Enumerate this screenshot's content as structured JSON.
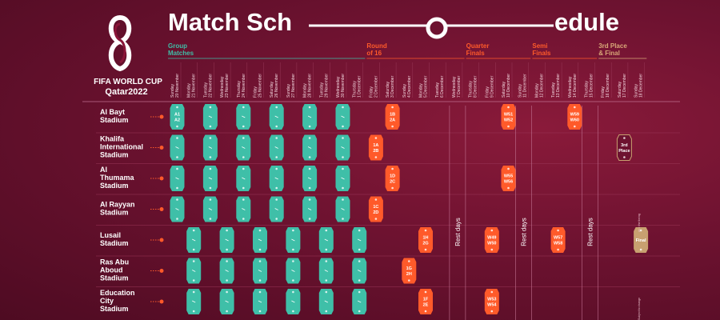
{
  "title_part1": "Match Sch",
  "title_part2": "edule",
  "logo": {
    "line1": "FIFA WORLD CUP",
    "line2": "Qatar2022"
  },
  "colors": {
    "group": "#3fbfa8",
    "knockout": "#ff5a2a",
    "final": "#c8a070",
    "bg": "#6d1230"
  },
  "stages": [
    {
      "line1": "Group",
      "line2": "Matches",
      "color": "green"
    },
    {
      "line1": "Round",
      "line2": "of 16",
      "color": "orange"
    },
    {
      "line1": "Quarter",
      "line2": "Finals",
      "color": "orange"
    },
    {
      "line1": "Semi",
      "line2": "Finals",
      "color": "orange"
    },
    {
      "line1": "3rd Place",
      "line2": "& Final",
      "color": "gold"
    }
  ],
  "dates": [
    {
      "day": "Sunday",
      "date": "20 November"
    },
    {
      "day": "Monday",
      "date": "21 November"
    },
    {
      "day": "Tuesday",
      "date": "22 November"
    },
    {
      "day": "Wednesday",
      "date": "23 November"
    },
    {
      "day": "Thursday",
      "date": "24 November"
    },
    {
      "day": "Friday",
      "date": "25 November"
    },
    {
      "day": "Saturday",
      "date": "26 November"
    },
    {
      "day": "Sunday",
      "date": "27 November"
    },
    {
      "day": "Monday",
      "date": "28 November"
    },
    {
      "day": "Tuesday",
      "date": "29 November"
    },
    {
      "day": "Wednesday",
      "date": "30 November"
    },
    {
      "day": "Thursday",
      "date": "1 December"
    },
    {
      "day": "Friday",
      "date": "2 December"
    },
    {
      "day": "Saturday",
      "date": "3 December"
    },
    {
      "day": "Sunday",
      "date": "4 December"
    },
    {
      "day": "Monday",
      "date": "5 December"
    },
    {
      "day": "Tuesday",
      "date": "6 December"
    },
    {
      "day": "Wednesday",
      "date": "7 December"
    },
    {
      "day": "Thursday",
      "date": "8 December"
    },
    {
      "day": "Friday",
      "date": "9 December"
    },
    {
      "day": "Saturday",
      "date": "10 December"
    },
    {
      "day": "Sunday",
      "date": "11 December"
    },
    {
      "day": "Monday",
      "date": "12 December"
    },
    {
      "day": "Tuesday",
      "date": "13 December"
    },
    {
      "day": "Wednesday",
      "date": "14 December"
    },
    {
      "day": "Thursday",
      "date": "15 December"
    },
    {
      "day": "Friday",
      "date": "16 December"
    },
    {
      "day": "Saturday",
      "date": "17 December"
    },
    {
      "day": "Sunday",
      "date": "18 December"
    }
  ],
  "stadiums": [
    [
      "Al Bayt",
      "Stadium"
    ],
    [
      "Khalifa",
      "International",
      "Stadium"
    ],
    [
      "Al",
      "Thumama",
      "Stadium"
    ],
    [
      "Al Rayyan",
      "Stadium"
    ],
    [
      "Lusail",
      "Stadium"
    ],
    [
      "Ras Abu",
      "Aboud",
      "Stadium"
    ],
    [
      "Education",
      "City",
      "Stadium"
    ]
  ],
  "matches": [
    {
      "row": 0,
      "col": 0,
      "label": [
        "A1",
        "A2"
      ],
      "color": "green"
    },
    {
      "row": 0,
      "col": 2,
      "label": [],
      "color": "green"
    },
    {
      "row": 0,
      "col": 4,
      "label": [],
      "color": "green"
    },
    {
      "row": 0,
      "col": 6,
      "label": [],
      "color": "green"
    },
    {
      "row": 0,
      "col": 8,
      "label": [],
      "color": "green"
    },
    {
      "row": 0,
      "col": 10,
      "label": [],
      "color": "green"
    },
    {
      "row": 0,
      "col": 13,
      "label": [
        "1B",
        "2A"
      ],
      "color": "orange"
    },
    {
      "row": 0,
      "col": 20,
      "label": [
        "W51",
        "W52"
      ],
      "color": "orange"
    },
    {
      "row": 0,
      "col": 24,
      "label": [
        "W59",
        "W60"
      ],
      "color": "orange"
    },
    {
      "row": 1,
      "col": 0,
      "label": [],
      "color": "green"
    },
    {
      "row": 1,
      "col": 2,
      "label": [],
      "color": "green"
    },
    {
      "row": 1,
      "col": 4,
      "label": [],
      "color": "green"
    },
    {
      "row": 1,
      "col": 6,
      "label": [],
      "color": "green"
    },
    {
      "row": 1,
      "col": 8,
      "label": [],
      "color": "green"
    },
    {
      "row": 1,
      "col": 10,
      "label": [],
      "color": "green"
    },
    {
      "row": 1,
      "col": 12,
      "label": [
        "1A",
        "2B"
      ],
      "color": "orange"
    },
    {
      "row": 1,
      "col": 27,
      "label": [
        "3rd",
        "Place"
      ],
      "color": "gold-outline"
    },
    {
      "row": 2,
      "col": 0,
      "label": [],
      "color": "green"
    },
    {
      "row": 2,
      "col": 2,
      "label": [],
      "color": "green"
    },
    {
      "row": 2,
      "col": 4,
      "label": [],
      "color": "green"
    },
    {
      "row": 2,
      "col": 6,
      "label": [],
      "color": "green"
    },
    {
      "row": 2,
      "col": 8,
      "label": [],
      "color": "green"
    },
    {
      "row": 2,
      "col": 10,
      "label": [],
      "color": "green"
    },
    {
      "row": 2,
      "col": 13,
      "label": [
        "1D",
        "2C"
      ],
      "color": "orange"
    },
    {
      "row": 2,
      "col": 20,
      "label": [
        "W55",
        "W56"
      ],
      "color": "orange"
    },
    {
      "row": 3,
      "col": 0,
      "label": [],
      "color": "green"
    },
    {
      "row": 3,
      "col": 2,
      "label": [],
      "color": "green"
    },
    {
      "row": 3,
      "col": 4,
      "label": [],
      "color": "green"
    },
    {
      "row": 3,
      "col": 6,
      "label": [],
      "color": "green"
    },
    {
      "row": 3,
      "col": 8,
      "label": [],
      "color": "green"
    },
    {
      "row": 3,
      "col": 10,
      "label": [],
      "color": "green"
    },
    {
      "row": 3,
      "col": 12,
      "label": [
        "1C",
        "2D"
      ],
      "color": "orange"
    },
    {
      "row": 4,
      "col": 1,
      "label": [],
      "color": "green"
    },
    {
      "row": 4,
      "col": 3,
      "label": [],
      "color": "green"
    },
    {
      "row": 4,
      "col": 5,
      "label": [],
      "color": "green"
    },
    {
      "row": 4,
      "col": 7,
      "label": [],
      "color": "green"
    },
    {
      "row": 4,
      "col": 9,
      "label": [],
      "color": "green"
    },
    {
      "row": 4,
      "col": 11,
      "label": [],
      "color": "green"
    },
    {
      "row": 4,
      "col": 15,
      "label": [
        "1H",
        "2G"
      ],
      "color": "orange"
    },
    {
      "row": 4,
      "col": 19,
      "label": [
        "W49",
        "W50"
      ],
      "color": "orange"
    },
    {
      "row": 4,
      "col": 23,
      "label": [
        "W57",
        "W58"
      ],
      "color": "orange"
    },
    {
      "row": 4,
      "col": 28,
      "label": [
        "Final"
      ],
      "color": "gold"
    },
    {
      "row": 5,
      "col": 1,
      "label": [],
      "color": "green"
    },
    {
      "row": 5,
      "col": 3,
      "label": [],
      "color": "green"
    },
    {
      "row": 5,
      "col": 5,
      "label": [],
      "color": "green"
    },
    {
      "row": 5,
      "col": 7,
      "label": [],
      "color": "green"
    },
    {
      "row": 5,
      "col": 9,
      "label": [],
      "color": "green"
    },
    {
      "row": 5,
      "col": 11,
      "label": [],
      "color": "green"
    },
    {
      "row": 5,
      "col": 14,
      "label": [
        "1G",
        "2H"
      ],
      "color": "orange"
    },
    {
      "row": 6,
      "col": 1,
      "label": [],
      "color": "green"
    },
    {
      "row": 6,
      "col": 3,
      "label": [],
      "color": "green"
    },
    {
      "row": 6,
      "col": 5,
      "label": [],
      "color": "green"
    },
    {
      "row": 6,
      "col": 7,
      "label": [],
      "color": "green"
    },
    {
      "row": 6,
      "col": 9,
      "label": [],
      "color": "green"
    },
    {
      "row": 6,
      "col": 11,
      "label": [],
      "color": "green"
    },
    {
      "row": 6,
      "col": 15,
      "label": [
        "1F",
        "2E"
      ],
      "color": "orange"
    },
    {
      "row": 6,
      "col": 19,
      "label": [
        "W53",
        "W54"
      ],
      "color": "orange"
    }
  ],
  "rest_days": [
    {
      "col": 17,
      "label": "Rest days"
    },
    {
      "col": 21,
      "label": "Rest days"
    },
    {
      "col": 25,
      "label": "Rest days"
    }
  ],
  "side_notes": [
    "as = the timing",
    "Subject to change"
  ]
}
